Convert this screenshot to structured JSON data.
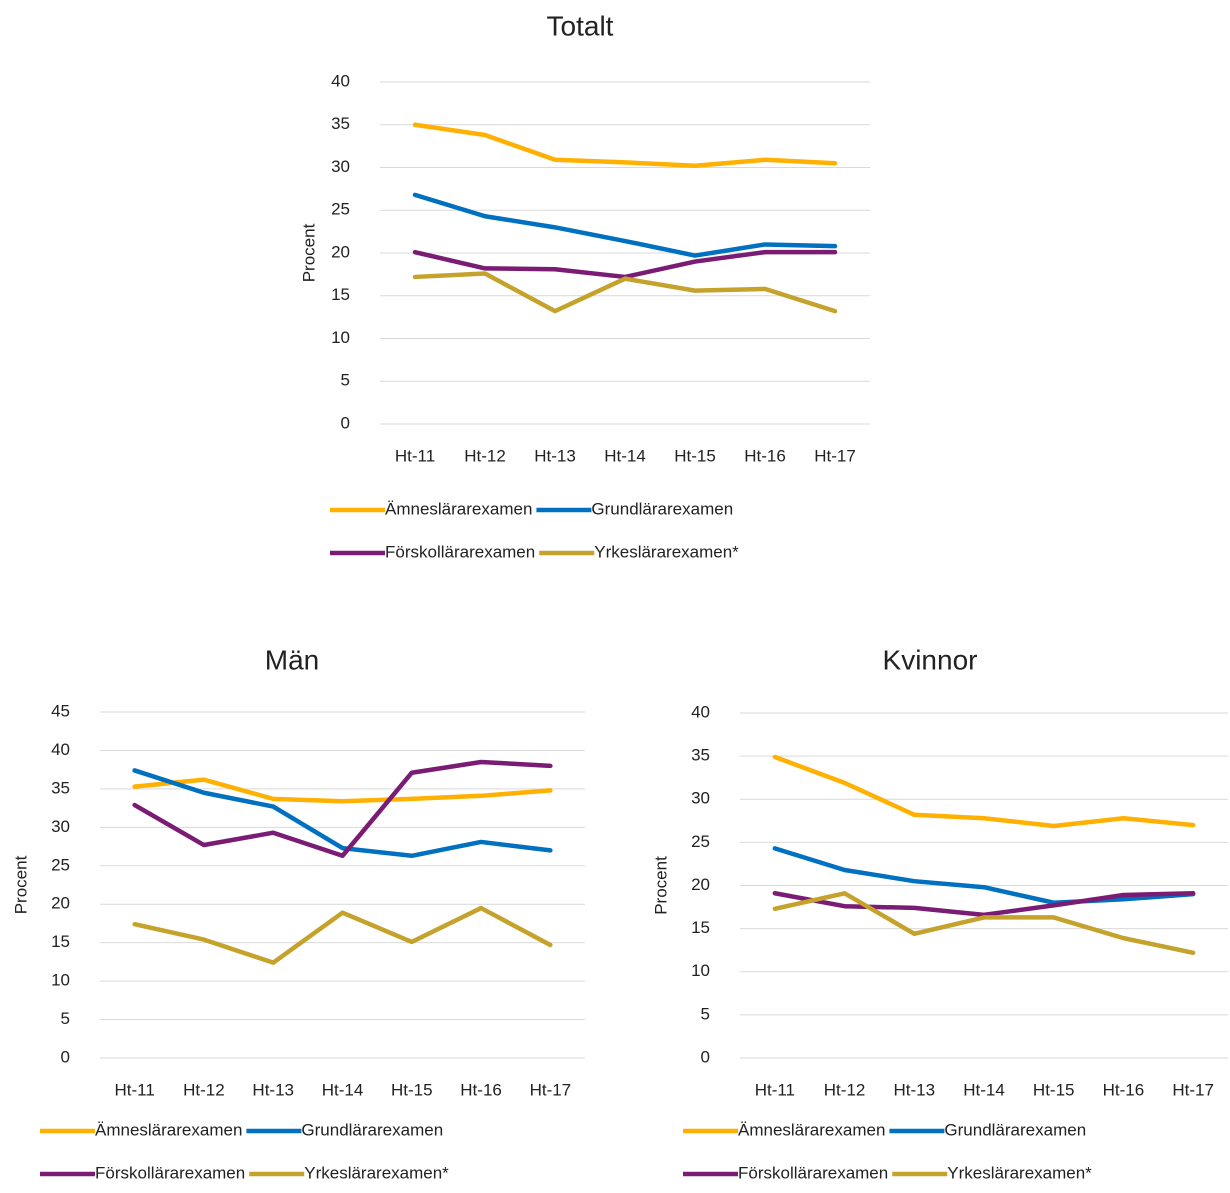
{
  "chart_data": [
    {
      "type": "line",
      "title": "Totalt",
      "ylabel": "Procent",
      "categories": [
        "Ht-11",
        "Ht-12",
        "Ht-13",
        "Ht-14",
        "Ht-15",
        "Ht-16",
        "Ht-17"
      ],
      "ylim": [
        0,
        40
      ],
      "yticks": [
        0,
        5,
        10,
        15,
        20,
        25,
        30,
        35,
        40
      ],
      "grid": true,
      "legend": "bottom",
      "series": [
        {
          "name": "Ämneslärarexamen",
          "color": "#ffb000",
          "values": [
            35.0,
            33.8,
            30.9,
            30.6,
            30.2,
            30.9,
            30.5
          ]
        },
        {
          "name": "Grundlärarexamen",
          "color": "#0070c0",
          "values": [
            26.8,
            24.3,
            23.0,
            21.4,
            19.7,
            21.0,
            20.8
          ]
        },
        {
          "name": "Förskollärarexamen",
          "color": "#7a1c74",
          "values": [
            20.1,
            18.2,
            18.1,
            17.2,
            19.0,
            20.1,
            20.1
          ]
        },
        {
          "name": "Yrkeslärarexamen*",
          "color": "#c4a22b",
          "values": [
            17.2,
            17.6,
            13.2,
            17.0,
            15.6,
            15.8,
            13.2
          ]
        }
      ]
    },
    {
      "type": "line",
      "title": "Män",
      "ylabel": "Procent",
      "categories": [
        "Ht-11",
        "Ht-12",
        "Ht-13",
        "Ht-14",
        "Ht-15",
        "Ht-16",
        "Ht-17"
      ],
      "ylim": [
        0,
        45
      ],
      "yticks": [
        0,
        5,
        10,
        15,
        20,
        25,
        30,
        35,
        40,
        45
      ],
      "grid": true,
      "legend": "bottom",
      "series": [
        {
          "name": "Ämneslärarexamen",
          "color": "#ffb000",
          "values": [
            35.3,
            36.2,
            33.7,
            33.4,
            33.7,
            34.1,
            34.8
          ]
        },
        {
          "name": "Grundlärarexamen",
          "color": "#0070c0",
          "values": [
            37.4,
            34.5,
            32.7,
            27.3,
            26.3,
            28.1,
            27.0
          ]
        },
        {
          "name": "Förskollärarexamen",
          "color": "#7a1c74",
          "values": [
            32.9,
            27.7,
            29.3,
            26.3,
            37.1,
            38.5,
            38.0
          ]
        },
        {
          "name": "Yrkeslärarexamen*",
          "color": "#c4a22b",
          "values": [
            17.4,
            15.4,
            12.4,
            18.9,
            15.1,
            19.5,
            14.7
          ]
        }
      ]
    },
    {
      "type": "line",
      "title": "Kvinnor",
      "ylabel": "Procent",
      "categories": [
        "Ht-11",
        "Ht-12",
        "Ht-13",
        "Ht-14",
        "Ht-15",
        "Ht-16",
        "Ht-17"
      ],
      "ylim": [
        0,
        40
      ],
      "yticks": [
        0,
        5,
        10,
        15,
        20,
        25,
        30,
        35,
        40
      ],
      "grid": true,
      "legend": "bottom",
      "series": [
        {
          "name": "Ämneslärarexamen",
          "color": "#ffb000",
          "values": [
            34.9,
            31.9,
            28.2,
            27.8,
            26.9,
            27.8,
            27.0
          ]
        },
        {
          "name": "Grundlärarexamen",
          "color": "#0070c0",
          "values": [
            24.3,
            21.8,
            20.5,
            19.8,
            18.0,
            18.4,
            19.0
          ]
        },
        {
          "name": "Förskollärarexamen",
          "color": "#7a1c74",
          "values": [
            19.1,
            17.6,
            17.4,
            16.6,
            17.7,
            18.9,
            19.1
          ]
        },
        {
          "name": "Yrkeslärarexamen*",
          "color": "#c4a22b",
          "values": [
            17.3,
            19.1,
            14.4,
            16.3,
            16.3,
            13.9,
            12.2
          ]
        }
      ]
    }
  ]
}
